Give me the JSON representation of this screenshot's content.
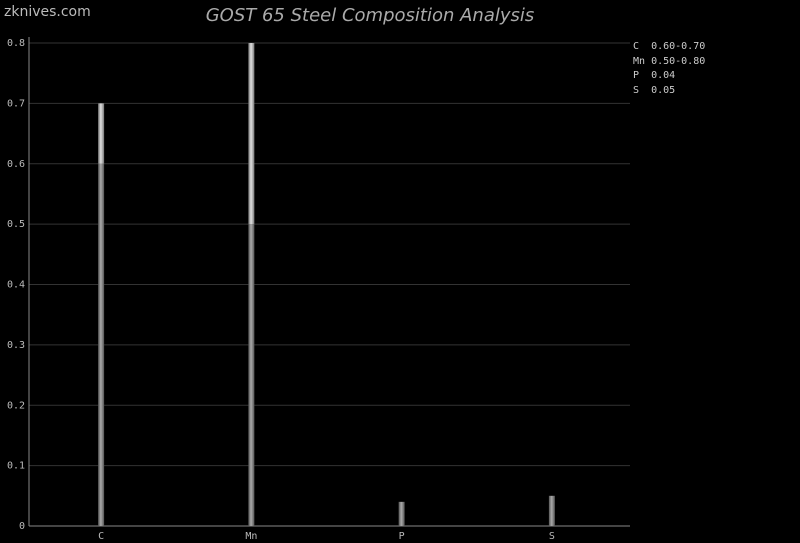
{
  "brand": "zknives.com",
  "chart_data": {
    "type": "bar",
    "title": "GOST 65 Steel Composition Analysis",
    "categories": [
      "C",
      "Mn",
      "P",
      "S"
    ],
    "series": [
      {
        "min": [
          0.6,
          0.5,
          0.04,
          0.05
        ],
        "max": [
          0.7,
          0.8,
          0.04,
          0.05
        ]
      }
    ],
    "ylim": [
      0,
      0.8
    ],
    "yticks": [
      "0",
      "0.1",
      "0.2",
      "0.3",
      "0.4",
      "0.5",
      "0.6",
      "0.7",
      "0.8"
    ],
    "grid": true,
    "legend_position": "top-right",
    "legend": [
      {
        "element": "C",
        "value": "0.60-0.70"
      },
      {
        "element": "Mn",
        "value": "0.50-0.80"
      },
      {
        "element": "P",
        "value": "0.04"
      },
      {
        "element": "S",
        "value": "0.05"
      }
    ]
  }
}
